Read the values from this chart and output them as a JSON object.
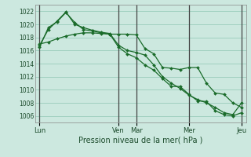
{
  "title": "Pression niveau de la mer( hPa )",
  "bg_color": "#cce8df",
  "grid_color": "#99ccbb",
  "line_color": "#1a6b2a",
  "marker_color": "#1a6b2a",
  "ylim": [
    1005.0,
    1023.0
  ],
  "yticks": [
    1006,
    1008,
    1010,
    1012,
    1014,
    1016,
    1018,
    1020,
    1022
  ],
  "xtick_labels": [
    "Lun",
    "Ven",
    "Mar",
    "Mer",
    "Jeu"
  ],
  "xtick_positions": [
    0,
    9,
    11,
    17,
    23
  ],
  "n_points": 24,
  "series": [
    [
      1016.5,
      1019.5,
      1020.4,
      1021.8,
      1020.3,
      1019.2,
      1019.0,
      1018.7,
      1018.5,
      1018.5,
      1018.5,
      1018.4,
      1016.3,
      1015.5,
      1013.4,
      1013.3,
      1013.1,
      1013.4,
      1013.4,
      1011.0,
      1009.5,
      1009.3,
      1008.0,
      1007.3
    ],
    [
      1016.8,
      1019.2,
      1020.5,
      1021.9,
      1020.0,
      1019.5,
      1019.1,
      1018.8,
      1018.6,
      1016.8,
      1016.0,
      1015.7,
      1015.3,
      1013.8,
      1012.0,
      1011.0,
      1010.2,
      1009.2,
      1008.5,
      1008.0,
      1007.3,
      1006.5,
      1006.2,
      1008.0
    ],
    [
      1017.0,
      1017.3,
      1017.8,
      1018.2,
      1018.5,
      1018.7,
      1018.7,
      1018.6,
      1018.5,
      1016.5,
      1015.5,
      1014.9,
      1013.8,
      1013.0,
      1011.7,
      1010.5,
      1010.5,
      1009.3,
      1008.3,
      1008.2,
      1006.8,
      1006.2,
      1006.0,
      1006.5
    ]
  ],
  "vline_positions": [
    0,
    9,
    11,
    17,
    23
  ],
  "vline_color": "#444444"
}
